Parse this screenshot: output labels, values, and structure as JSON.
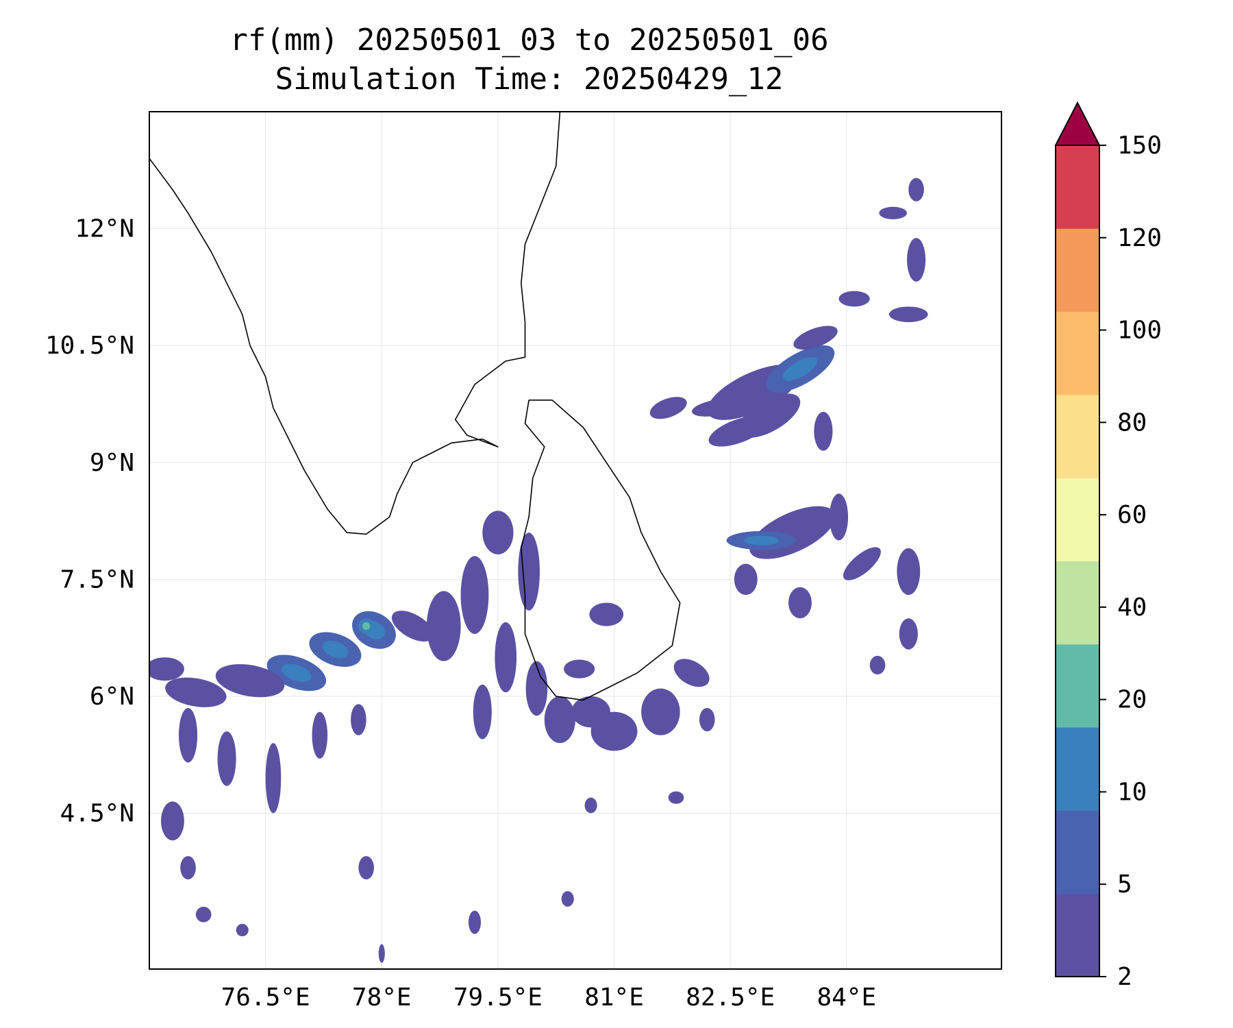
{
  "title": {
    "line1": "rf(mm) 20250501_03 to 20250501_06",
    "line2": "Simulation Time: 20250429_12"
  },
  "map": {
    "lon_range": [
      75.0,
      86.0
    ],
    "lat_range": [
      2.5,
      13.5
    ],
    "x_ticks": [
      {
        "value": 76.5,
        "label": "76.5°E"
      },
      {
        "value": 78.0,
        "label": "78°E"
      },
      {
        "value": 79.5,
        "label": "79.5°E"
      },
      {
        "value": 81.0,
        "label": "81°E"
      },
      {
        "value": 82.5,
        "label": "82.5°E"
      },
      {
        "value": 84.0,
        "label": "84°E"
      }
    ],
    "y_ticks": [
      {
        "value": 4.5,
        "label": "4.5°N"
      },
      {
        "value": 6.0,
        "label": "6°N"
      },
      {
        "value": 7.5,
        "label": "7.5°N"
      },
      {
        "value": 9.0,
        "label": "9°N"
      },
      {
        "value": 10.5,
        "label": "10.5°N"
      },
      {
        "value": 12.0,
        "label": "12°N"
      }
    ],
    "gridlines": true,
    "coast_india": [
      [
        75.0,
        12.9
      ],
      [
        75.3,
        12.5
      ],
      [
        75.5,
        12.2
      ],
      [
        75.8,
        11.7
      ],
      [
        76.0,
        11.3
      ],
      [
        76.2,
        10.9
      ],
      [
        76.3,
        10.5
      ],
      [
        76.5,
        10.1
      ],
      [
        76.6,
        9.7
      ],
      [
        76.8,
        9.3
      ],
      [
        77.0,
        8.9
      ],
      [
        77.3,
        8.4
      ],
      [
        77.55,
        8.1
      ],
      [
        77.8,
        8.08
      ],
      [
        78.1,
        8.3
      ],
      [
        78.2,
        8.6
      ],
      [
        78.4,
        9.0
      ],
      [
        78.9,
        9.25
      ],
      [
        79.3,
        9.3
      ],
      [
        79.5,
        9.2
      ],
      [
        79.1,
        9.35
      ],
      [
        78.95,
        9.55
      ],
      [
        79.2,
        10.0
      ],
      [
        79.6,
        10.3
      ],
      [
        79.85,
        10.35
      ],
      [
        79.85,
        10.8
      ],
      [
        79.8,
        11.3
      ],
      [
        79.85,
        11.8
      ],
      [
        80.05,
        12.3
      ],
      [
        80.25,
        12.8
      ],
      [
        80.3,
        13.5
      ]
    ],
    "coast_srilanka": [
      [
        79.9,
        9.8
      ],
      [
        80.2,
        9.8
      ],
      [
        80.6,
        9.45
      ],
      [
        80.9,
        9.0
      ],
      [
        81.2,
        8.55
      ],
      [
        81.35,
        8.1
      ],
      [
        81.6,
        7.6
      ],
      [
        81.85,
        7.2
      ],
      [
        81.75,
        6.65
      ],
      [
        81.3,
        6.3
      ],
      [
        80.9,
        6.1
      ],
      [
        80.6,
        5.95
      ],
      [
        80.25,
        6.0
      ],
      [
        80.05,
        6.25
      ],
      [
        79.85,
        6.8
      ],
      [
        79.85,
        7.3
      ],
      [
        79.8,
        7.9
      ],
      [
        79.9,
        8.3
      ],
      [
        79.95,
        8.8
      ],
      [
        80.1,
        9.2
      ],
      [
        79.85,
        9.5
      ],
      [
        79.9,
        9.8
      ]
    ],
    "rain_cells": [
      [
        82.8,
        9.9,
        0.65,
        0.25,
        -25,
        1
      ],
      [
        83.4,
        10.2,
        0.5,
        0.2,
        -30,
        2
      ],
      [
        83.0,
        9.6,
        0.45,
        0.2,
        -30,
        1
      ],
      [
        82.6,
        9.4,
        0.4,
        0.15,
        -20,
        1
      ],
      [
        83.6,
        10.6,
        0.3,
        0.12,
        -20,
        1
      ],
      [
        84.8,
        10.9,
        0.25,
        0.1,
        0,
        1
      ],
      [
        84.1,
        11.1,
        0.2,
        0.1,
        0,
        1
      ],
      [
        84.9,
        11.6,
        0.12,
        0.28,
        0,
        1
      ],
      [
        84.6,
        12.2,
        0.18,
        0.08,
        0,
        1
      ],
      [
        84.9,
        12.5,
        0.1,
        0.15,
        0,
        1
      ],
      [
        83.3,
        8.1,
        0.6,
        0.25,
        -25,
        1
      ],
      [
        82.9,
        8.0,
        0.45,
        0.12,
        0,
        2
      ],
      [
        84.2,
        7.7,
        0.3,
        0.12,
        -40,
        1
      ],
      [
        84.8,
        7.6,
        0.15,
        0.3,
        0,
        1
      ],
      [
        82.3,
        9.7,
        0.3,
        0.1,
        -10,
        1
      ],
      [
        81.7,
        9.7,
        0.25,
        0.12,
        -20,
        1
      ],
      [
        83.9,
        8.3,
        0.12,
        0.3,
        0,
        1
      ],
      [
        83.7,
        9.4,
        0.12,
        0.25,
        0,
        1
      ],
      [
        82.7,
        7.5,
        0.15,
        0.2,
        0,
        1
      ],
      [
        83.4,
        7.2,
        0.15,
        0.2,
        0,
        1
      ],
      [
        84.8,
        6.8,
        0.12,
        0.2,
        0,
        1
      ],
      [
        84.4,
        6.4,
        0.1,
        0.12,
        0,
        1
      ],
      [
        82.0,
        6.3,
        0.25,
        0.15,
        30,
        1
      ],
      [
        81.6,
        5.8,
        0.25,
        0.3,
        0,
        1
      ],
      [
        82.2,
        5.7,
        0.1,
        0.15,
        0,
        1
      ],
      [
        81.8,
        4.7,
        0.1,
        0.08,
        0,
        1
      ],
      [
        79.5,
        8.1,
        0.2,
        0.28,
        0,
        1
      ],
      [
        79.9,
        7.6,
        0.14,
        0.5,
        0,
        1
      ],
      [
        79.2,
        7.3,
        0.18,
        0.5,
        0,
        1
      ],
      [
        78.8,
        6.9,
        0.22,
        0.45,
        0,
        1
      ],
      [
        79.6,
        6.5,
        0.14,
        0.45,
        0,
        1
      ],
      [
        80.0,
        6.1,
        0.14,
        0.35,
        0,
        1
      ],
      [
        79.3,
        5.8,
        0.12,
        0.35,
        0,
        1
      ],
      [
        80.3,
        5.7,
        0.2,
        0.3,
        0,
        1
      ],
      [
        80.7,
        5.8,
        0.25,
        0.2,
        0,
        1
      ],
      [
        81.0,
        5.55,
        0.3,
        0.25,
        0,
        1
      ],
      [
        80.9,
        7.05,
        0.22,
        0.15,
        0,
        1
      ],
      [
        80.55,
        6.35,
        0.2,
        0.12,
        0,
        1
      ],
      [
        78.4,
        6.9,
        0.3,
        0.15,
        30,
        1
      ],
      [
        77.9,
        6.85,
        0.3,
        0.22,
        30,
        2
      ],
      [
        77.8,
        6.9,
        0.1,
        0.1,
        0,
        3
      ],
      [
        77.4,
        6.6,
        0.35,
        0.2,
        20,
        2
      ],
      [
        76.9,
        6.3,
        0.4,
        0.2,
        20,
        2
      ],
      [
        76.3,
        6.2,
        0.45,
        0.2,
        10,
        1
      ],
      [
        75.6,
        6.05,
        0.4,
        0.18,
        10,
        1
      ],
      [
        75.2,
        6.35,
        0.25,
        0.15,
        0,
        1
      ],
      [
        75.5,
        5.5,
        0.12,
        0.35,
        0,
        1
      ],
      [
        76.0,
        5.2,
        0.12,
        0.35,
        0,
        1
      ],
      [
        76.6,
        4.95,
        0.1,
        0.45,
        0,
        1
      ],
      [
        77.2,
        5.5,
        0.1,
        0.3,
        0,
        1
      ],
      [
        77.7,
        5.7,
        0.1,
        0.2,
        0,
        1
      ],
      [
        75.3,
        4.4,
        0.15,
        0.25,
        0,
        1
      ],
      [
        75.5,
        3.8,
        0.1,
        0.15,
        0,
        1
      ],
      [
        75.7,
        3.2,
        0.1,
        0.1,
        0,
        1
      ],
      [
        76.2,
        3.0,
        0.08,
        0.08,
        0,
        1
      ],
      [
        77.8,
        3.8,
        0.1,
        0.15,
        0,
        1
      ],
      [
        79.2,
        3.1,
        0.08,
        0.15,
        0,
        1
      ],
      [
        80.7,
        4.6,
        0.08,
        0.1,
        0,
        1
      ],
      [
        80.4,
        3.4,
        0.08,
        0.1,
        0,
        1
      ],
      [
        78.0,
        2.7,
        0.04,
        0.12,
        0,
        1
      ]
    ]
  },
  "colorbar": {
    "levels": [
      2,
      5,
      10,
      20,
      40,
      60,
      80,
      100,
      120,
      150
    ],
    "colors": [
      "#5b51a3",
      "#4a63b0",
      "#3a80bc",
      "#62bba9",
      "#bfe3a1",
      "#f3f9ab",
      "#fbdf8a",
      "#fbbd6b",
      "#f59a5a",
      "#d63f4f"
    ],
    "extend_color": "#9e0142",
    "tick_labels": [
      "2",
      "5",
      "10",
      "20",
      "40",
      "60",
      "80",
      "100",
      "120",
      "150"
    ]
  }
}
